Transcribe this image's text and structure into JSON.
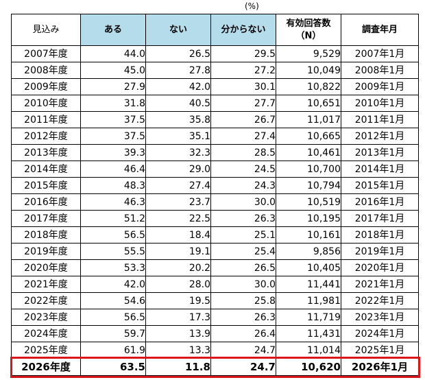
{
  "unit_label": "(%)",
  "columns": [
    "見込み",
    "ある",
    "ない",
    "分からない",
    "有効回答数\n（N）",
    "調査年月"
  ],
  "rows": [
    [
      "2007年度",
      "44.0",
      "26.5",
      "29.5",
      "9,529",
      "2007年1月"
    ],
    [
      "2008年度",
      "45.0",
      "27.8",
      "27.2",
      "10,049",
      "2008年1月"
    ],
    [
      "2009年度",
      "27.9",
      "42.0",
      "30.1",
      "10,822",
      "2009年1月"
    ],
    [
      "2010年度",
      "31.8",
      "40.5",
      "27.7",
      "10,651",
      "2010年1月"
    ],
    [
      "2011年度",
      "37.5",
      "35.8",
      "26.7",
      "11,017",
      "2011年1月"
    ],
    [
      "2012年度",
      "37.5",
      "35.1",
      "27.4",
      "10,665",
      "2012年1月"
    ],
    [
      "2013年度",
      "39.3",
      "32.3",
      "28.5",
      "10,461",
      "2013年1月"
    ],
    [
      "2014年度",
      "46.4",
      "29.0",
      "24.5",
      "10,700",
      "2014年1月"
    ],
    [
      "2015年度",
      "48.3",
      "27.4",
      "24.3",
      "10,794",
      "2015年1月"
    ],
    [
      "2016年度",
      "46.3",
      "23.7",
      "30.0",
      "10,519",
      "2016年1月"
    ],
    [
      "2017年度",
      "51.2",
      "22.5",
      "26.3",
      "10,195",
      "2017年1月"
    ],
    [
      "2018年度",
      "56.5",
      "18.4",
      "25.1",
      "10,161",
      "2018年1月"
    ],
    [
      "2019年度",
      "55.5",
      "19.1",
      "25.4",
      "9,856",
      "2019年1月"
    ],
    [
      "2020年度",
      "53.3",
      "20.2",
      "26.5",
      "10,405",
      "2020年1月"
    ],
    [
      "2021年度",
      "42.0",
      "28.0",
      "30.0",
      "11,441",
      "2021年1月"
    ],
    [
      "2022年度",
      "54.6",
      "19.5",
      "25.8",
      "11,981",
      "2022年1月"
    ],
    [
      "2023年度",
      "56.5",
      "17.3",
      "26.3",
      "11,719",
      "2023年1月"
    ],
    [
      "2024年度",
      "59.7",
      "13.9",
      "26.4",
      "11,431",
      "2024年1月"
    ],
    [
      "2025年度",
      "61.9",
      "13.3",
      "24.7",
      "11,014",
      "2025年1月"
    ],
    [
      "2026年度",
      "63.5",
      "11.8",
      "24.7",
      "10,620",
      "2026年1月"
    ]
  ],
  "colors": {
    "header_highlight": "#b4dcea",
    "latest_row_border": "#d9161b"
  }
}
